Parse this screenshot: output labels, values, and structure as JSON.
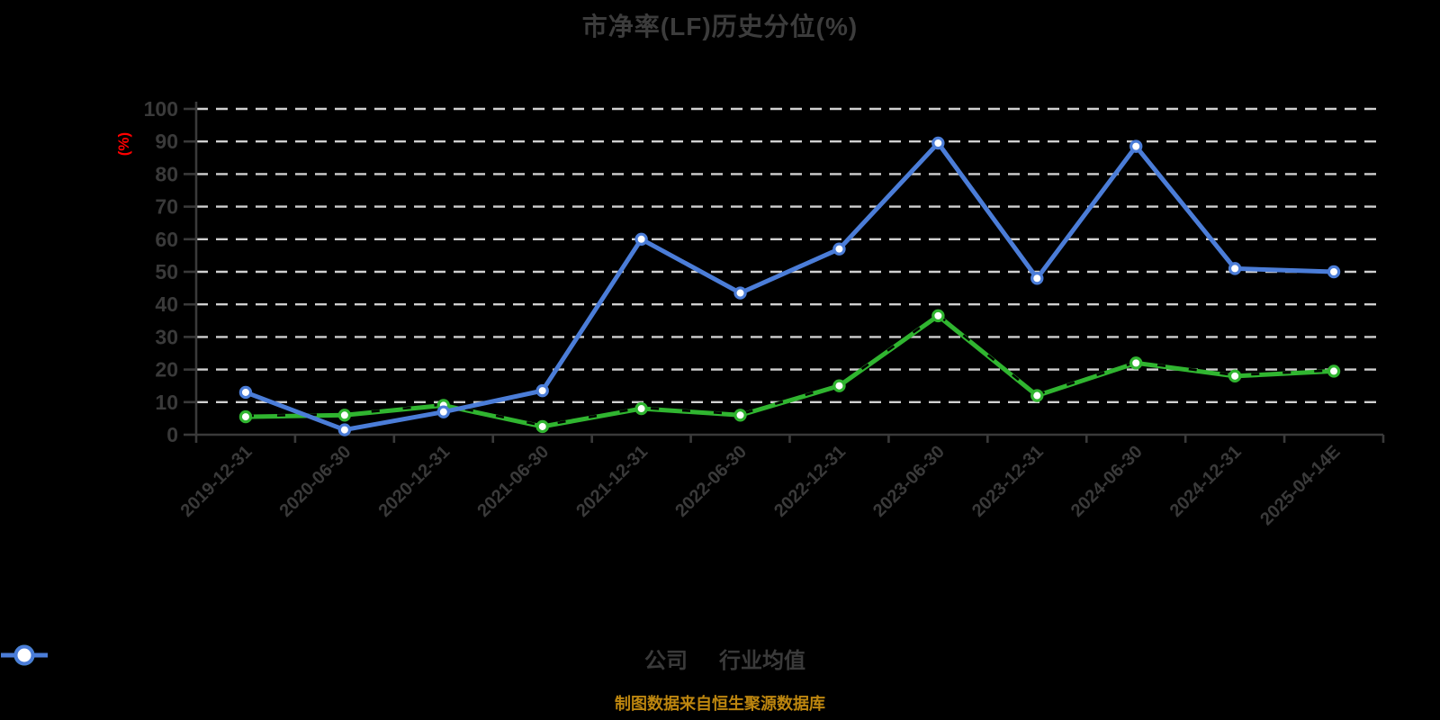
{
  "title": "市净率(LF)历史分位(%)",
  "y_axis_unit": "(%)",
  "legend": {
    "items": [
      {
        "label": "公司",
        "color": "#30b530"
      },
      {
        "label": "行业均值",
        "color": "#4b7dd8"
      }
    ]
  },
  "footer": {
    "caption": "制图数据来自恒生聚源数据库"
  },
  "colors": {
    "background": "#000000",
    "company_line": "#30b530",
    "industry_line": "#4b7dd8",
    "grid": "#d0d0d0",
    "axis": "#3a3a3a",
    "text": "#3a3a3a",
    "unit_label": "#ff0000",
    "caption": "#bd860f"
  },
  "chart_data": {
    "type": "line",
    "title": "市净率(LF)历史分位(%)",
    "xlabel": "",
    "ylabel": "(%)",
    "ylim": [
      0,
      100
    ],
    "ytick_step": 10,
    "grid": "horizontal-dashed-white",
    "legend_position": "bottom",
    "x_label_rotation": -45,
    "categories": [
      "2019-12-31",
      "2020-06-30",
      "2020-12-31",
      "2021-06-30",
      "2021-12-31",
      "2022-06-30",
      "2022-12-31",
      "2023-06-30",
      "2023-12-31",
      "2024-06-30",
      "2024-12-31",
      "2025-04-14E"
    ],
    "series": [
      {
        "name": "公司",
        "color": "#30b530",
        "line_style": "solid-with-black-dash-overlay",
        "values": [
          5.5,
          6,
          9,
          2.5,
          8,
          6,
          15,
          36.5,
          12,
          22,
          18,
          19.5
        ]
      },
      {
        "name": "行业均值",
        "color": "#4b7dd8",
        "line_style": "solid",
        "values": [
          13,
          1.5,
          7,
          13.5,
          60,
          43.5,
          57,
          89.5,
          48,
          88.5,
          51,
          50
        ]
      }
    ]
  }
}
